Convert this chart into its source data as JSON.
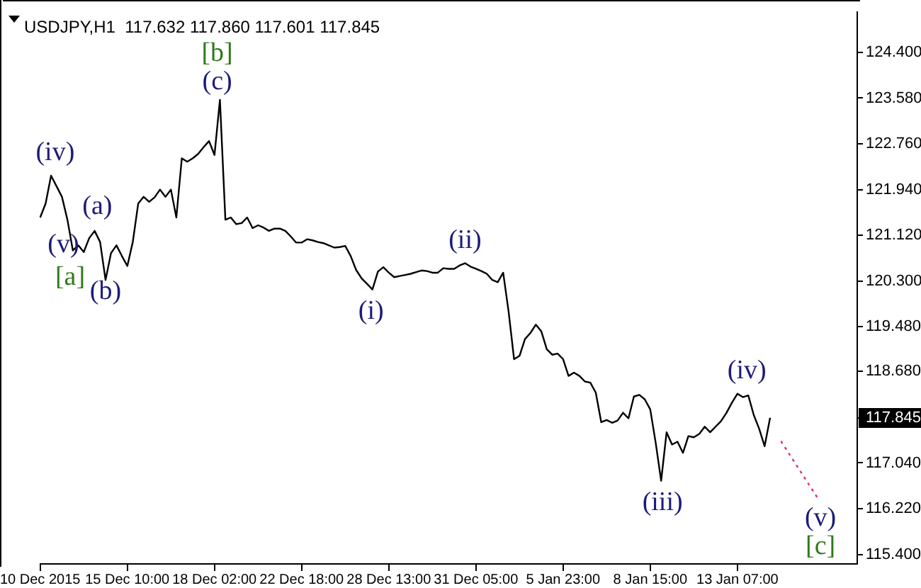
{
  "chart_data": {
    "type": "line",
    "title": "USDJPY,H1  117.632 117.860 117.601 117.845",
    "marker": "none",
    "ylim": [
      115.23,
      125.12
    ],
    "categories": [
      "10 Dec 2015",
      null,
      null,
      null,
      null,
      null,
      null,
      null,
      null,
      null,
      null,
      null,
      null,
      null,
      null,
      null,
      "15 Dec 10:00",
      null,
      null,
      null,
      null,
      null,
      null,
      null,
      null,
      null,
      null,
      null,
      null,
      null,
      null,
      null,
      "18 Dec 02:00",
      null,
      null,
      null,
      null,
      null,
      null,
      null,
      null,
      null,
      null,
      null,
      null,
      null,
      null,
      null,
      "22 Dec 18:00",
      null,
      null,
      null,
      null,
      null,
      null,
      null,
      null,
      null,
      null,
      null,
      null,
      null,
      null,
      null,
      "28 Dec 13:00",
      null,
      null,
      null,
      null,
      null,
      null,
      null,
      null,
      null,
      null,
      null,
      null,
      null,
      null,
      null,
      "31 Dec 05:00",
      null,
      null,
      null,
      null,
      null,
      null,
      null,
      null,
      null,
      null,
      null,
      null,
      null,
      null,
      null,
      "5 Jan 23:00",
      null,
      null,
      null,
      null,
      null,
      null,
      null,
      null,
      null,
      null,
      null,
      null,
      null,
      null,
      null,
      "8 Jan 15:00",
      null,
      null,
      null,
      null,
      null,
      null,
      null,
      null,
      null,
      null,
      null,
      null,
      null,
      null,
      null,
      "13 Jan 07:00",
      null,
      null,
      null,
      null,
      null,
      null,
      null,
      null,
      null,
      null,
      null,
      null,
      null,
      null,
      null,
      null,
      null,
      null,
      null,
      null,
      null,
      null
    ],
    "yticks": [
      {
        "value": 124.4,
        "label": "124.400"
      },
      {
        "value": 123.58,
        "label": "123.580"
      },
      {
        "value": 122.76,
        "label": "122.760"
      },
      {
        "value": 121.94,
        "label": "121.940"
      },
      {
        "value": 121.12,
        "label": "121.120"
      },
      {
        "value": 120.3,
        "label": "120.300"
      },
      {
        "value": 119.48,
        "label": "119.480"
      },
      {
        "value": 118.68,
        "label": "118.680"
      },
      {
        "value": 117.845,
        "label": "117.845"
      },
      {
        "value": 117.04,
        "label": "117.040"
      },
      {
        "value": 116.22,
        "label": "116.220"
      },
      {
        "value": 115.4,
        "label": "115.400"
      }
    ],
    "series": [
      {
        "color": "#000000",
        "values": [
          121.44,
          121.69,
          122.19,
          122.0,
          121.81,
          121.4,
          120.85,
          120.94,
          120.82,
          121.07,
          121.2,
          121.0,
          120.32,
          120.8,
          120.94,
          120.75,
          120.57,
          121.0,
          121.69,
          121.81,
          121.72,
          121.8,
          121.94,
          121.81,
          121.94,
          121.44,
          122.5,
          122.44,
          122.5,
          122.58,
          122.7,
          122.81,
          122.56,
          123.55,
          121.4,
          121.44,
          121.32,
          121.34,
          121.44,
          121.25,
          121.3,
          121.26,
          121.2,
          121.24,
          121.24,
          121.2,
          121.1,
          120.99,
          120.99,
          121.05,
          121.03,
          121.0,
          120.98,
          120.94,
          120.9,
          120.91,
          120.93,
          120.75,
          120.5,
          120.35,
          120.25,
          120.15,
          120.47,
          120.55,
          120.45,
          120.37,
          120.39,
          120.41,
          120.43,
          120.46,
          120.49,
          120.48,
          120.45,
          120.45,
          120.53,
          120.52,
          120.52,
          120.58,
          120.62,
          120.56,
          120.52,
          120.48,
          120.43,
          120.32,
          120.28,
          120.45,
          119.75,
          118.9,
          118.96,
          119.26,
          119.37,
          119.52,
          119.4,
          119.08,
          118.98,
          119.0,
          118.9,
          118.6,
          118.66,
          118.6,
          118.5,
          118.48,
          118.3,
          117.77,
          117.81,
          117.76,
          117.8,
          117.94,
          117.84,
          118.23,
          118.26,
          118.18,
          118.0,
          117.4,
          116.72,
          117.59,
          117.37,
          117.42,
          117.22,
          117.52,
          117.5,
          117.56,
          117.69,
          117.59,
          117.69,
          117.79,
          117.94,
          118.12,
          118.28,
          118.22,
          118.25,
          117.9,
          117.65,
          117.34,
          117.85,
          null,
          null,
          null,
          null,
          null,
          null,
          null,
          null,
          null,
          null,
          null,
          null,
          null,
          null,
          null,
          null
        ]
      },
      {
        "type": "line",
        "color": "#e0306a",
        "line_style": "dotted",
        "values": [
          null,
          null,
          null,
          null,
          null,
          null,
          null,
          null,
          null,
          null,
          null,
          null,
          null,
          null,
          null,
          null,
          null,
          null,
          null,
          null,
          null,
          null,
          null,
          null,
          null,
          null,
          null,
          null,
          null,
          null,
          null,
          null,
          null,
          null,
          null,
          null,
          null,
          null,
          null,
          null,
          null,
          null,
          null,
          null,
          null,
          null,
          null,
          null,
          null,
          null,
          null,
          null,
          null,
          null,
          null,
          null,
          null,
          null,
          null,
          null,
          null,
          null,
          null,
          null,
          null,
          null,
          null,
          null,
          null,
          null,
          null,
          null,
          null,
          null,
          null,
          null,
          null,
          null,
          null,
          null,
          null,
          null,
          null,
          null,
          null,
          null,
          null,
          null,
          null,
          null,
          null,
          null,
          null,
          null,
          null,
          null,
          null,
          null,
          null,
          null,
          null,
          null,
          null,
          null,
          null,
          null,
          null,
          null,
          null,
          null,
          null,
          null,
          null,
          null,
          null,
          null,
          null,
          null,
          null,
          null,
          null,
          null,
          null,
          null,
          null,
          null,
          null,
          null,
          null,
          null,
          null,
          null,
          null,
          null,
          null,
          null,
          117.43,
          null,
          null,
          null,
          null,
          null,
          null,
          116.37,
          null,
          null,
          null,
          null,
          null,
          null,
          null
        ]
      }
    ],
    "annotations": [
      "(iv)",
      "(a)",
      "(v)",
      "[a]",
      "(b)",
      "[b]",
      "(c)",
      "(i)",
      "(ii)",
      "(iii)",
      "(iv)",
      "(v)",
      "[c]"
    ]
  }
}
